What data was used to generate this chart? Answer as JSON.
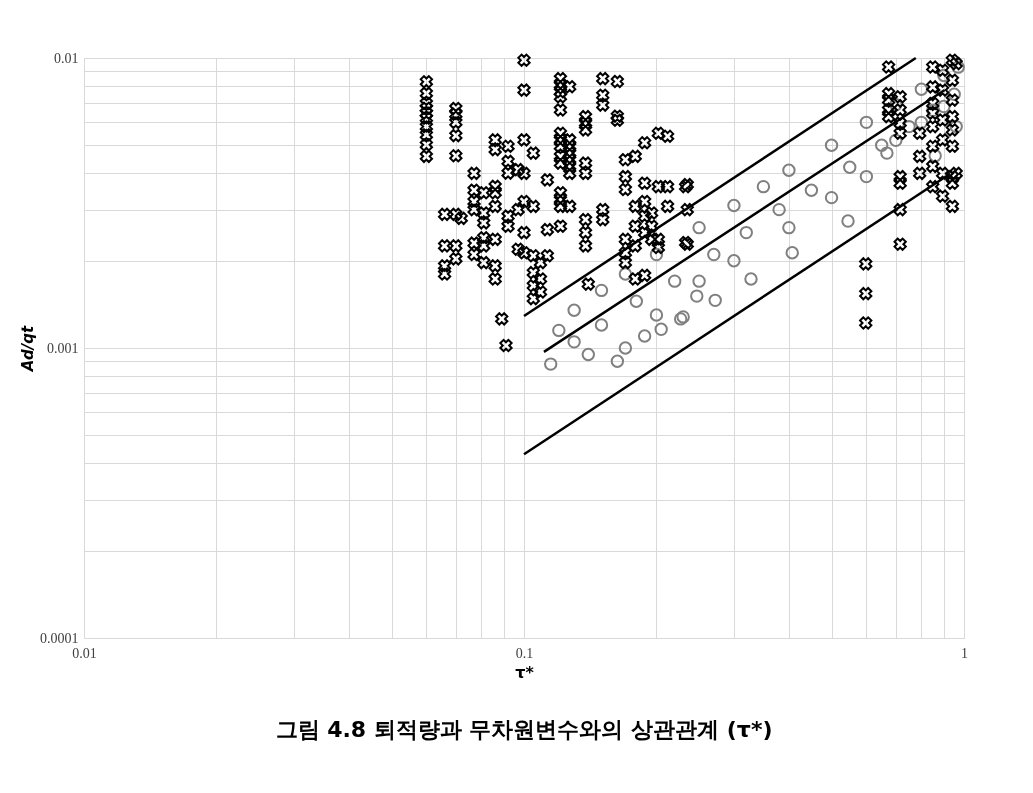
{
  "chart_data": {
    "type": "scatter",
    "title": "그림 4.8 퇴적량과 무차원변수와의 상관관계 (τ*)",
    "xlabel": "τ*",
    "ylabel": "Ad/qt",
    "log": "xy",
    "grid": true,
    "xlim": [
      0.01,
      1
    ],
    "ylim": [
      0.0001,
      0.01
    ],
    "xticks": [
      0.01,
      {
        "value": 0.02,
        "label": null
      },
      {
        "value": 0.03,
        "label": null
      },
      {
        "value": 0.04,
        "label": null
      },
      {
        "value": 0.05,
        "label": null
      },
      {
        "value": 0.06,
        "label": null
      },
      {
        "value": 0.07,
        "label": null
      },
      {
        "value": 0.08,
        "label": null
      },
      {
        "value": 0.09,
        "label": null
      },
      0.1,
      {
        "value": 0.2,
        "label": null
      },
      {
        "value": 0.3,
        "label": null
      },
      {
        "value": 0.4,
        "label": null
      },
      {
        "value": 0.5,
        "label": null
      },
      {
        "value": 0.6,
        "label": null
      },
      {
        "value": 0.7,
        "label": null
      },
      {
        "value": 0.8,
        "label": null
      },
      {
        "value": 0.9,
        "label": null
      },
      1
    ],
    "yticks": [
      0.0001,
      {
        "value": 0.0002,
        "label": null
      },
      {
        "value": 0.0003,
        "label": null
      },
      {
        "value": 0.0004,
        "label": null
      },
      {
        "value": 0.0005,
        "label": null
      },
      {
        "value": 0.0006,
        "label": null
      },
      {
        "value": 0.0007,
        "label": null
      },
      {
        "value": 0.0008,
        "label": null
      },
      {
        "value": 0.0009,
        "label": null
      },
      0.001,
      {
        "value": 0.002,
        "label": null
      },
      {
        "value": 0.003,
        "label": null
      },
      {
        "value": 0.004,
        "label": null
      },
      {
        "value": 0.005,
        "label": null
      },
      {
        "value": 0.006,
        "label": null
      },
      {
        "value": 0.007,
        "label": null
      },
      {
        "value": 0.008,
        "label": null
      },
      {
        "value": 0.009,
        "label": null
      },
      0.01
    ],
    "series": [
      {
        "marker": "circle",
        "color": "#808080",
        "x": [
          0.12,
          0.13,
          0.15,
          0.17,
          0.2,
          0.25,
          0.3,
          0.35,
          0.4,
          0.5,
          0.6,
          0.7,
          0.8,
          0.9,
          0.97,
          0.115,
          0.13,
          0.15,
          0.18,
          0.22,
          0.27,
          0.32,
          0.38,
          0.45,
          0.55,
          0.65,
          0.75,
          0.85,
          0.95,
          0.163,
          0.272,
          0.328,
          0.407,
          0.545,
          0.23,
          0.668,
          0.86,
          0.96,
          0.17,
          0.188,
          0.205,
          0.227,
          0.247,
          0.14,
          0.2,
          0.25,
          0.3,
          0.4,
          0.5,
          0.6,
          0.7,
          0.8,
          0.9
        ],
        "values": [
          0.00115,
          0.00135,
          0.00158,
          0.0018,
          0.0021,
          0.0026,
          0.0031,
          0.0036,
          0.0041,
          0.005,
          0.006,
          0.0069,
          0.0078,
          0.0087,
          0.0093,
          0.00088,
          0.00105,
          0.0012,
          0.00145,
          0.0017,
          0.0021,
          0.0025,
          0.003,
          0.0035,
          0.0042,
          0.005,
          0.0058,
          0.0066,
          0.0075,
          0.0009,
          0.00146,
          0.00173,
          0.00213,
          0.00274,
          0.00128,
          0.0047,
          0.0046,
          0.0058,
          0.001,
          0.0011,
          0.00116,
          0.00126,
          0.00151,
          0.00095,
          0.0013,
          0.0017,
          0.002,
          0.0026,
          0.0033,
          0.0039,
          0.0052,
          0.006,
          0.0068
        ]
      },
      {
        "marker": "cross",
        "color": "#000000",
        "x": [
          0.06,
          0.06,
          0.06,
          0.06,
          0.06,
          0.06,
          0.06,
          0.06,
          0.06,
          0.06,
          0.07,
          0.07,
          0.07,
          0.07,
          0.07,
          0.07,
          0.07,
          0.07,
          0.066,
          0.066,
          0.066,
          0.066,
          0.072,
          0.077,
          0.077,
          0.077,
          0.077,
          0.077,
          0.077,
          0.081,
          0.081,
          0.081,
          0.081,
          0.081,
          0.081,
          0.086,
          0.086,
          0.086,
          0.086,
          0.086,
          0.086,
          0.086,
          0.086,
          0.089,
          0.091,
          0.092,
          0.092,
          0.092,
          0.092,
          0.092,
          0.097,
          0.097,
          0.097,
          0.1,
          0.1,
          0.1,
          0.1,
          0.1,
          0.1,
          0.1,
          0.105,
          0.105,
          0.105,
          0.105,
          0.105,
          0.105,
          0.109,
          0.109,
          0.109,
          0.113,
          0.113,
          0.113,
          0.121,
          0.121,
          0.121,
          0.121,
          0.121,
          0.121,
          0.121,
          0.121,
          0.121,
          0.121,
          0.121,
          0.121,
          0.121,
          0.121,
          0.127,
          0.127,
          0.127,
          0.127,
          0.127,
          0.127,
          0.127,
          0.127,
          0.138,
          0.138,
          0.138,
          0.138,
          0.138,
          0.138,
          0.138,
          0.138,
          0.14,
          0.151,
          0.151,
          0.151,
          0.151,
          0.151,
          0.163,
          0.163,
          0.163,
          0.17,
          0.17,
          0.17,
          0.17,
          0.17,
          0.17,
          0.179,
          0.179,
          0.179,
          0.179,
          0.179,
          0.188,
          0.188,
          0.188,
          0.188,
          0.188,
          0.188,
          0.195,
          0.195,
          0.195,
          0.202,
          0.202,
          0.202,
          0.202,
          0.212,
          0.212,
          0.212,
          0.233,
          0.233,
          0.235,
          0.235,
          0.235,
          0.598,
          0.598,
          0.598,
          0.674,
          0.674,
          0.674,
          0.674,
          0.674,
          0.716,
          0.716,
          0.716,
          0.716,
          0.716,
          0.716,
          0.716,
          0.716,
          0.793,
          0.793,
          0.793,
          0.849,
          0.849,
          0.849,
          0.849,
          0.849,
          0.849,
          0.849,
          0.849,
          0.894,
          0.894,
          0.894,
          0.894,
          0.894,
          0.894,
          0.941,
          0.941,
          0.941,
          0.941,
          0.941,
          0.941,
          0.941,
          0.941,
          0.941,
          0.96,
          0.96
        ],
        "values": [
          0.00828,
          0.00755,
          0.00697,
          0.00671,
          0.00645,
          0.0062,
          0.0058,
          0.00543,
          0.00502,
          0.00458,
          0.0067,
          0.0064,
          0.006,
          0.0054,
          0.0046,
          0.00289,
          0.00225,
          0.00203,
          0.00289,
          0.00225,
          0.00192,
          0.0018,
          0.0028,
          0.004,
          0.0035,
          0.0032,
          0.003,
          0.0023,
          0.0021,
          0.00343,
          0.00292,
          0.0027,
          0.0024,
          0.00225,
          0.00197,
          0.00522,
          0.00483,
          0.00361,
          0.00343,
          0.00308,
          0.00237,
          0.00192,
          0.00173,
          0.00126,
          0.00102,
          0.00496,
          0.0044,
          0.00401,
          0.00285,
          0.00263,
          0.00412,
          0.003,
          0.00219,
          0.00982,
          0.00775,
          0.00522,
          0.004,
          0.0032,
          0.0025,
          0.00213,
          0.0047,
          0.00308,
          0.00208,
          0.00182,
          0.00164,
          0.00148,
          0.00197,
          0.00173,
          0.00156,
          0.0038,
          0.00256,
          0.00208,
          0.00849,
          0.00806,
          0.00765,
          0.00735,
          0.00662,
          0.0055,
          0.00522,
          0.00496,
          0.00458,
          0.00434,
          0.00343,
          0.00325,
          0.00308,
          0.00263,
          0.00796,
          0.00522,
          0.00496,
          0.0047,
          0.00446,
          0.00423,
          0.004,
          0.00308,
          0.00628,
          0.00596,
          0.00565,
          0.00434,
          0.004,
          0.00277,
          0.0025,
          0.00225,
          0.00166,
          0.00849,
          0.00744,
          0.00688,
          0.003,
          0.00277,
          0.0083,
          0.0063,
          0.0061,
          0.00446,
          0.0039,
          0.00352,
          0.00237,
          0.00213,
          0.00197,
          0.00458,
          0.00308,
          0.00263,
          0.00225,
          0.00173,
          0.0051,
          0.0037,
          0.0032,
          0.00285,
          0.0025,
          0.00178,
          0.00292,
          0.00263,
          0.00237,
          0.0055,
          0.0036,
          0.00237,
          0.00222,
          0.00537,
          0.0036,
          0.00308,
          0.0036,
          0.00231,
          0.00366,
          0.003,
          0.00228,
          0.00195,
          0.00154,
          0.00122,
          0.00931,
          0.00754,
          0.00716,
          0.00662,
          0.00628,
          0.00735,
          0.00662,
          0.00596,
          0.0055,
          0.0039,
          0.0037,
          0.003,
          0.00228,
          0.0055,
          0.00458,
          0.004,
          0.00931,
          0.00795,
          0.00697,
          0.00645,
          0.0058,
          0.00496,
          0.00423,
          0.0036,
          0.00907,
          0.00775,
          0.00611,
          0.00522,
          0.004,
          0.00334,
          0.00982,
          0.00838,
          0.00716,
          0.00628,
          0.00565,
          0.00496,
          0.0039,
          0.0037,
          0.00308,
          0.00956,
          0.004
        ]
      },
      {
        "type": "line",
        "color": "#000000",
        "x": [
          0.1,
          0.777
        ],
        "values": [
          0.00129,
          0.01
        ]
      },
      {
        "type": "line",
        "color": "#000000",
        "x": [
          0.111,
          0.904
        ],
        "values": [
          0.00097,
          0.00776
        ]
      },
      {
        "type": "line",
        "color": "#000000",
        "x": [
          0.1,
          0.93
        ],
        "values": [
          0.00043,
          0.00399
        ]
      }
    ]
  }
}
